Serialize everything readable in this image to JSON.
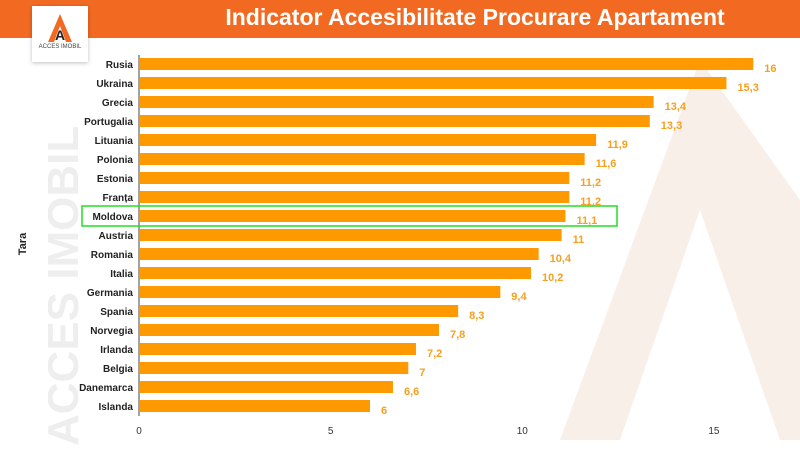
{
  "header": {
    "title": "Indicator Accesibilitate Procurare Apartament"
  },
  "logo": {
    "text": "ACCES IMOBIL"
  },
  "watermark": {
    "text": "ACCES IMOBIL"
  },
  "colors": {
    "header": "#f26a22",
    "bar": "#ff9900",
    "value_label": "#f5a020",
    "highlight": "#22dd22"
  },
  "chart_data": {
    "type": "bar",
    "orientation": "horizontal",
    "title": "Indicator Accesibilitate Procurare Apartament",
    "ylabel": "Tara",
    "xlabel": "",
    "categories": [
      "Rusia",
      "Ukraina",
      "Grecia",
      "Portugalia",
      "Lituania",
      "Polonia",
      "Estonia",
      "Franța",
      "Moldova",
      "Austria",
      "Romania",
      "Italia",
      "Germania",
      "Spania",
      "Norvegia",
      "Irlanda",
      "Belgia",
      "Danemarca",
      "Islanda"
    ],
    "values": [
      16,
      15.3,
      13.4,
      13.3,
      11.9,
      11.6,
      11.2,
      11.2,
      11.1,
      11,
      10.4,
      10.2,
      9.4,
      8.3,
      7.8,
      7.2,
      7,
      6.6,
      6
    ],
    "value_labels": [
      "16",
      "15,3",
      "13,4",
      "13,3",
      "11,9",
      "11,6",
      "11,2",
      "11,2",
      "11,1",
      "11",
      "10,4",
      "10,2",
      "9,4",
      "8,3",
      "7,8",
      "7,2",
      "7",
      "6,6",
      "6"
    ],
    "highlighted": "Moldova",
    "xlim": [
      0,
      17
    ],
    "xticks": [
      0,
      5,
      10,
      15
    ],
    "grid": false
  }
}
